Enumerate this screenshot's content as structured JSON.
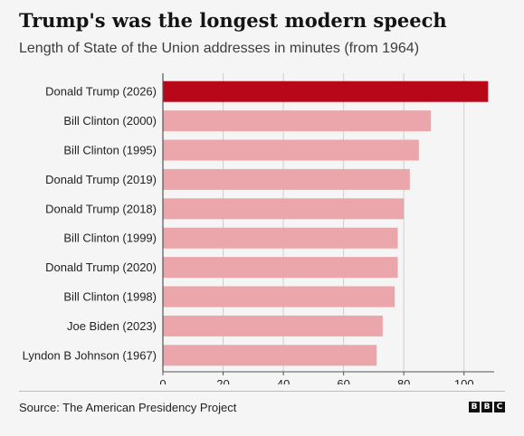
{
  "title": "Trump's was the longest modern speech",
  "subtitle": "Length of State of the Union addresses in minutes (from 1964)",
  "source": "Source: The American Presidency Project",
  "logo": [
    "B",
    "B",
    "C"
  ],
  "colors": {
    "highlight": "#b80718",
    "bar": "#eba6ab",
    "grid": "#cfcfcf",
    "axis": "#555555",
    "text": "#222222"
  },
  "chart_data": {
    "type": "bar",
    "orientation": "horizontal",
    "categories": [
      "Donald Trump (2026)",
      "Bill Clinton (2000)",
      "Bill Clinton (1995)",
      "Donald Trump (2019)",
      "Donald Trump (2018)",
      "Bill Clinton (1999)",
      "Donald Trump (2020)",
      "Bill Clinton (1998)",
      "Joe Biden (2023)",
      "Lyndon B Johnson (1967)"
    ],
    "values": [
      108,
      89,
      85,
      82,
      80,
      78,
      78,
      77,
      73,
      71
    ],
    "highlight_index": 0,
    "xlim": [
      0,
      110
    ],
    "xticks": [
      0,
      20,
      40,
      60,
      80,
      100
    ],
    "title": "Trump's was the longest modern speech",
    "xlabel": "",
    "ylabel": "",
    "grid": true
  }
}
